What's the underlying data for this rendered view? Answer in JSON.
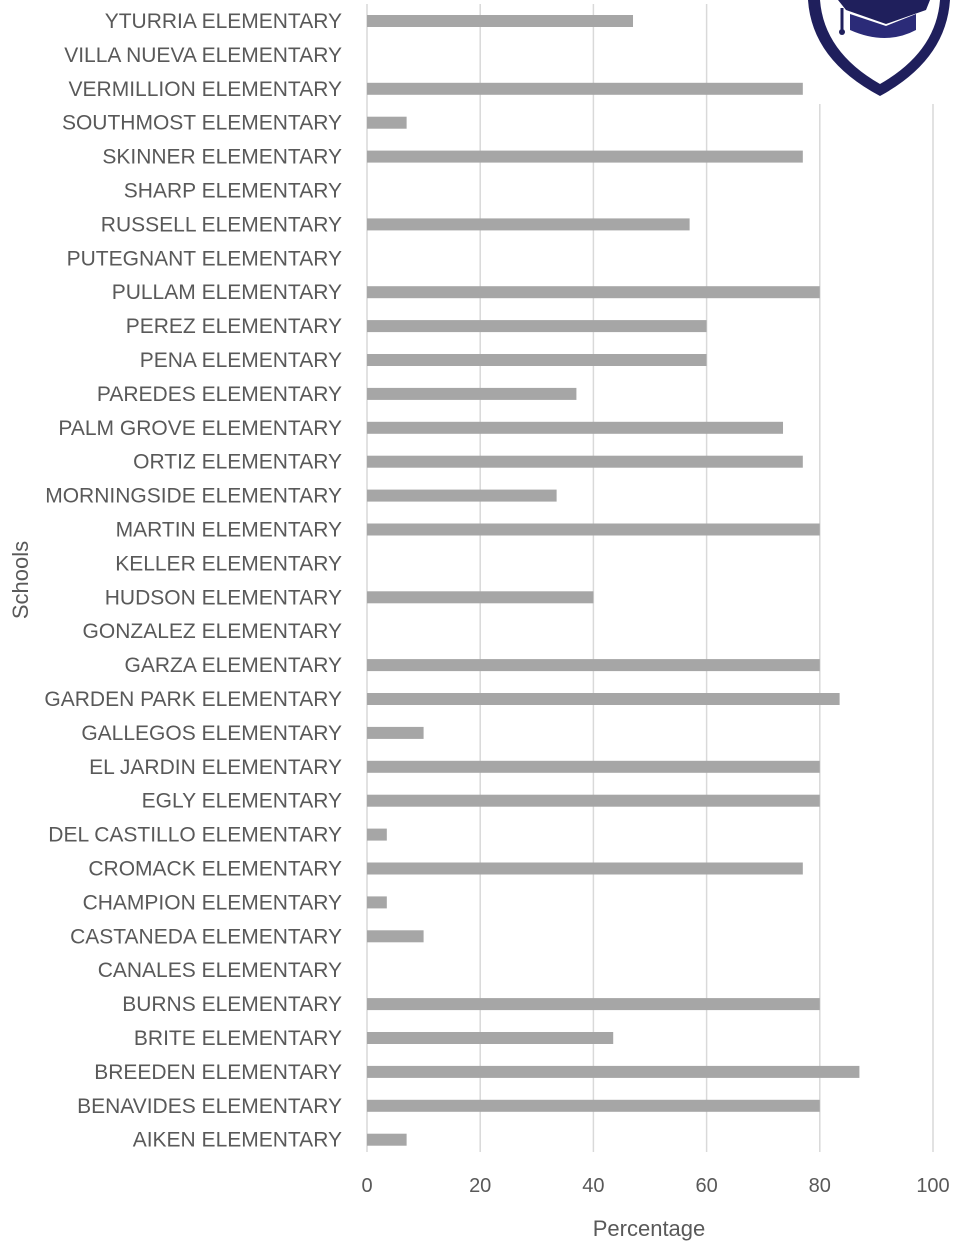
{
  "chart_data": {
    "type": "bar",
    "orientation": "horizontal",
    "xlabel": "Percentage",
    "ylabel": "Schools",
    "xlim": [
      0,
      100
    ],
    "xticks": [
      0,
      20,
      40,
      60,
      80,
      100
    ],
    "grid": true,
    "bar_color": "#a6a6a6",
    "categories": [
      "YTURRIA ELEMENTARY",
      "VILLA NUEVA ELEMENTARY",
      "VERMILLION ELEMENTARY",
      "SOUTHMOST ELEMENTARY",
      "SKINNER ELEMENTARY",
      "SHARP ELEMENTARY",
      "RUSSELL ELEMENTARY",
      "PUTEGNANT ELEMENTARY",
      "PULLAM  ELEMENTARY",
      "PEREZ ELEMENTARY",
      "PENA ELEMENTARY",
      "PAREDES ELEMENTARY",
      "PALM GROVE ELEMENTARY",
      "ORTIZ ELEMENTARY",
      "MORNINGSIDE ELEMENTARY",
      "MARTIN ELEMENTARY",
      "KELLER ELEMENTARY",
      "HUDSON ELEMENTARY",
      "GONZALEZ ELEMENTARY",
      "GARZA ELEMENTARY",
      "GARDEN PARK ELEMENTARY",
      "GALLEGOS ELEMENTARY",
      "EL JARDIN ELEMENTARY",
      "EGLY ELEMENTARY",
      "DEL CASTILLO ELEMENTARY",
      "CROMACK ELEMENTARY",
      "CHAMPION ELEMENTARY",
      "CASTANEDA ELEMENTARY",
      "CANALES ELEMENTARY",
      "BURNS ELEMENTARY",
      "BRITE ELEMENTARY",
      "BREEDEN ELEMENTARY",
      "BENAVIDES ELEMENTARY",
      "AIKEN ELEMENTARY"
    ],
    "values": [
      47,
      0,
      77,
      7,
      77,
      0,
      57,
      0,
      80,
      60,
      60,
      37,
      73.5,
      77,
      33.5,
      80,
      0,
      40,
      0,
      80,
      83.5,
      10,
      80,
      80,
      3.5,
      77,
      3.5,
      10,
      0,
      80,
      43.5,
      87,
      80,
      7
    ]
  },
  "logo": {
    "name": "graduation-cap-shield-logo",
    "color": "#1f1f5c"
  }
}
